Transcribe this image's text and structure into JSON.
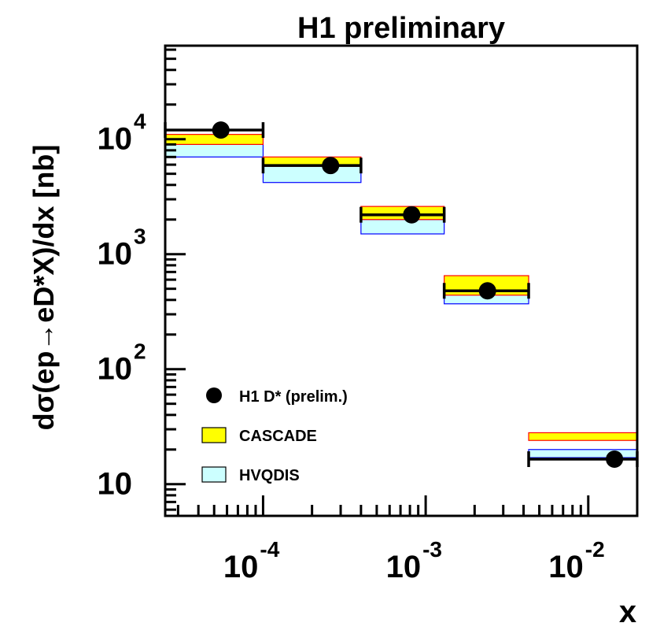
{
  "chart_data": {
    "type": "scatter",
    "title": "H1 preliminary",
    "xlabel": "x",
    "ylabel": "dσ(ep→eD*X)/dx [nb]",
    "x_scale": "log",
    "y_scale": "log",
    "xlim": [
      2.5e-05,
      0.02
    ],
    "ylim": [
      5.3,
      65000
    ],
    "x_ticks": [
      {
        "value": 0.0001,
        "base": "10",
        "exp": "-4"
      },
      {
        "value": 0.001,
        "base": "10",
        "exp": "-3"
      },
      {
        "value": 0.01,
        "base": "10",
        "exp": "-2"
      }
    ],
    "y_ticks": [
      {
        "value": 10,
        "base": "10",
        "exp": ""
      },
      {
        "value": 100,
        "base": "10",
        "exp": "2"
      },
      {
        "value": 1000,
        "base": "10",
        "exp": "3"
      },
      {
        "value": 10000,
        "base": "10",
        "exp": "4"
      }
    ],
    "grid": false,
    "legend_position": "bottom-left",
    "legend": [
      {
        "label": "H1 D* (prelim.)",
        "kind": "marker"
      },
      {
        "label": "CASCADE",
        "kind": "yellow-box"
      },
      {
        "label": "HVQDIS",
        "kind": "cyan-box"
      }
    ],
    "colors": {
      "cascade_fill": "#ffff00",
      "cascade_edge": "#ff0000",
      "hvqdis_fill": "#ccffff",
      "hvqdis_edge": "#0000ff",
      "data": "#000000"
    },
    "bins": [
      {
        "x_low": 2.5e-05,
        "x_high": 0.0001,
        "data_x": 5.5e-05,
        "data_y": 12000,
        "data_err_low": 11000,
        "data_err_high": 13000,
        "cascade_low": 9000,
        "cascade_high": 11000,
        "hvqdis_low": 7000,
        "hvqdis_high": 9000
      },
      {
        "x_low": 0.0001,
        "x_high": 0.0004,
        "data_x": 0.00026,
        "data_y": 5900,
        "data_err_low": 5400,
        "data_err_high": 6400,
        "cascade_low": 5800,
        "cascade_high": 7000,
        "hvqdis_low": 4200,
        "hvqdis_high": 6000
      },
      {
        "x_low": 0.0004,
        "x_high": 0.0013,
        "data_x": 0.00082,
        "data_y": 2200,
        "data_err_low": 2000,
        "data_err_high": 2450,
        "cascade_low": 2000,
        "cascade_high": 2600,
        "hvqdis_low": 1500,
        "hvqdis_high": 2000
      },
      {
        "x_low": 0.0013,
        "x_high": 0.0043,
        "data_x": 0.0024,
        "data_y": 480,
        "data_err_low": 440,
        "data_err_high": 520,
        "cascade_low": 440,
        "cascade_high": 650,
        "hvqdis_low": 370,
        "hvqdis_high": 500
      },
      {
        "x_low": 0.0043,
        "x_high": 0.02,
        "data_x": 0.0145,
        "data_y": 16.5,
        "data_err_low": 14,
        "data_err_high": 19.5,
        "cascade_low": 24,
        "cascade_high": 28,
        "hvqdis_low": 17,
        "hvqdis_high": 20
      }
    ]
  }
}
